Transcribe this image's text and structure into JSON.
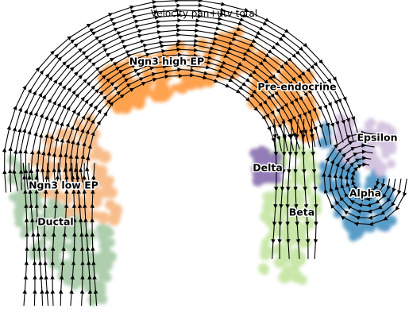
{
  "chart_data": {
    "type": "scatter",
    "title": "Velocity pan+utv total",
    "xlabel": "",
    "ylabel": "",
    "grid": false,
    "legend": "on data",
    "axes_visible": false,
    "overlay": "velocity streamlines",
    "clusters": [
      {
        "name": "Ductal",
        "color": "#8fbc8f",
        "center": [
          -7.2,
          -3.4
        ]
      },
      {
        "name": "Ngn3 low EP",
        "color": "#f4a460",
        "center": [
          -7.0,
          -1.9
        ]
      },
      {
        "name": "Ngn3 high EP",
        "color": "#ff7f0e",
        "center": [
          -2.2,
          4.5
        ]
      },
      {
        "name": "Pre-endocrine",
        "color": "#ff7f0e",
        "center": [
          2.4,
          3.2
        ]
      },
      {
        "name": "Beta",
        "color": "#b5de8a",
        "center": [
          2.8,
          -2.6
        ]
      },
      {
        "name": "Alpha",
        "color": "#1f77b4",
        "center": [
          6.2,
          -1.7
        ]
      },
      {
        "name": "Delta",
        "color": "#6a4c9c",
        "center": [
          1.4,
          -0.6
        ]
      },
      {
        "name": "Epsilon",
        "color": "#c5b0d5",
        "center": [
          6.5,
          0.8
        ]
      }
    ],
    "xlim": [
      -10,
      8
    ],
    "ylim": [
      -7,
      7
    ]
  }
}
